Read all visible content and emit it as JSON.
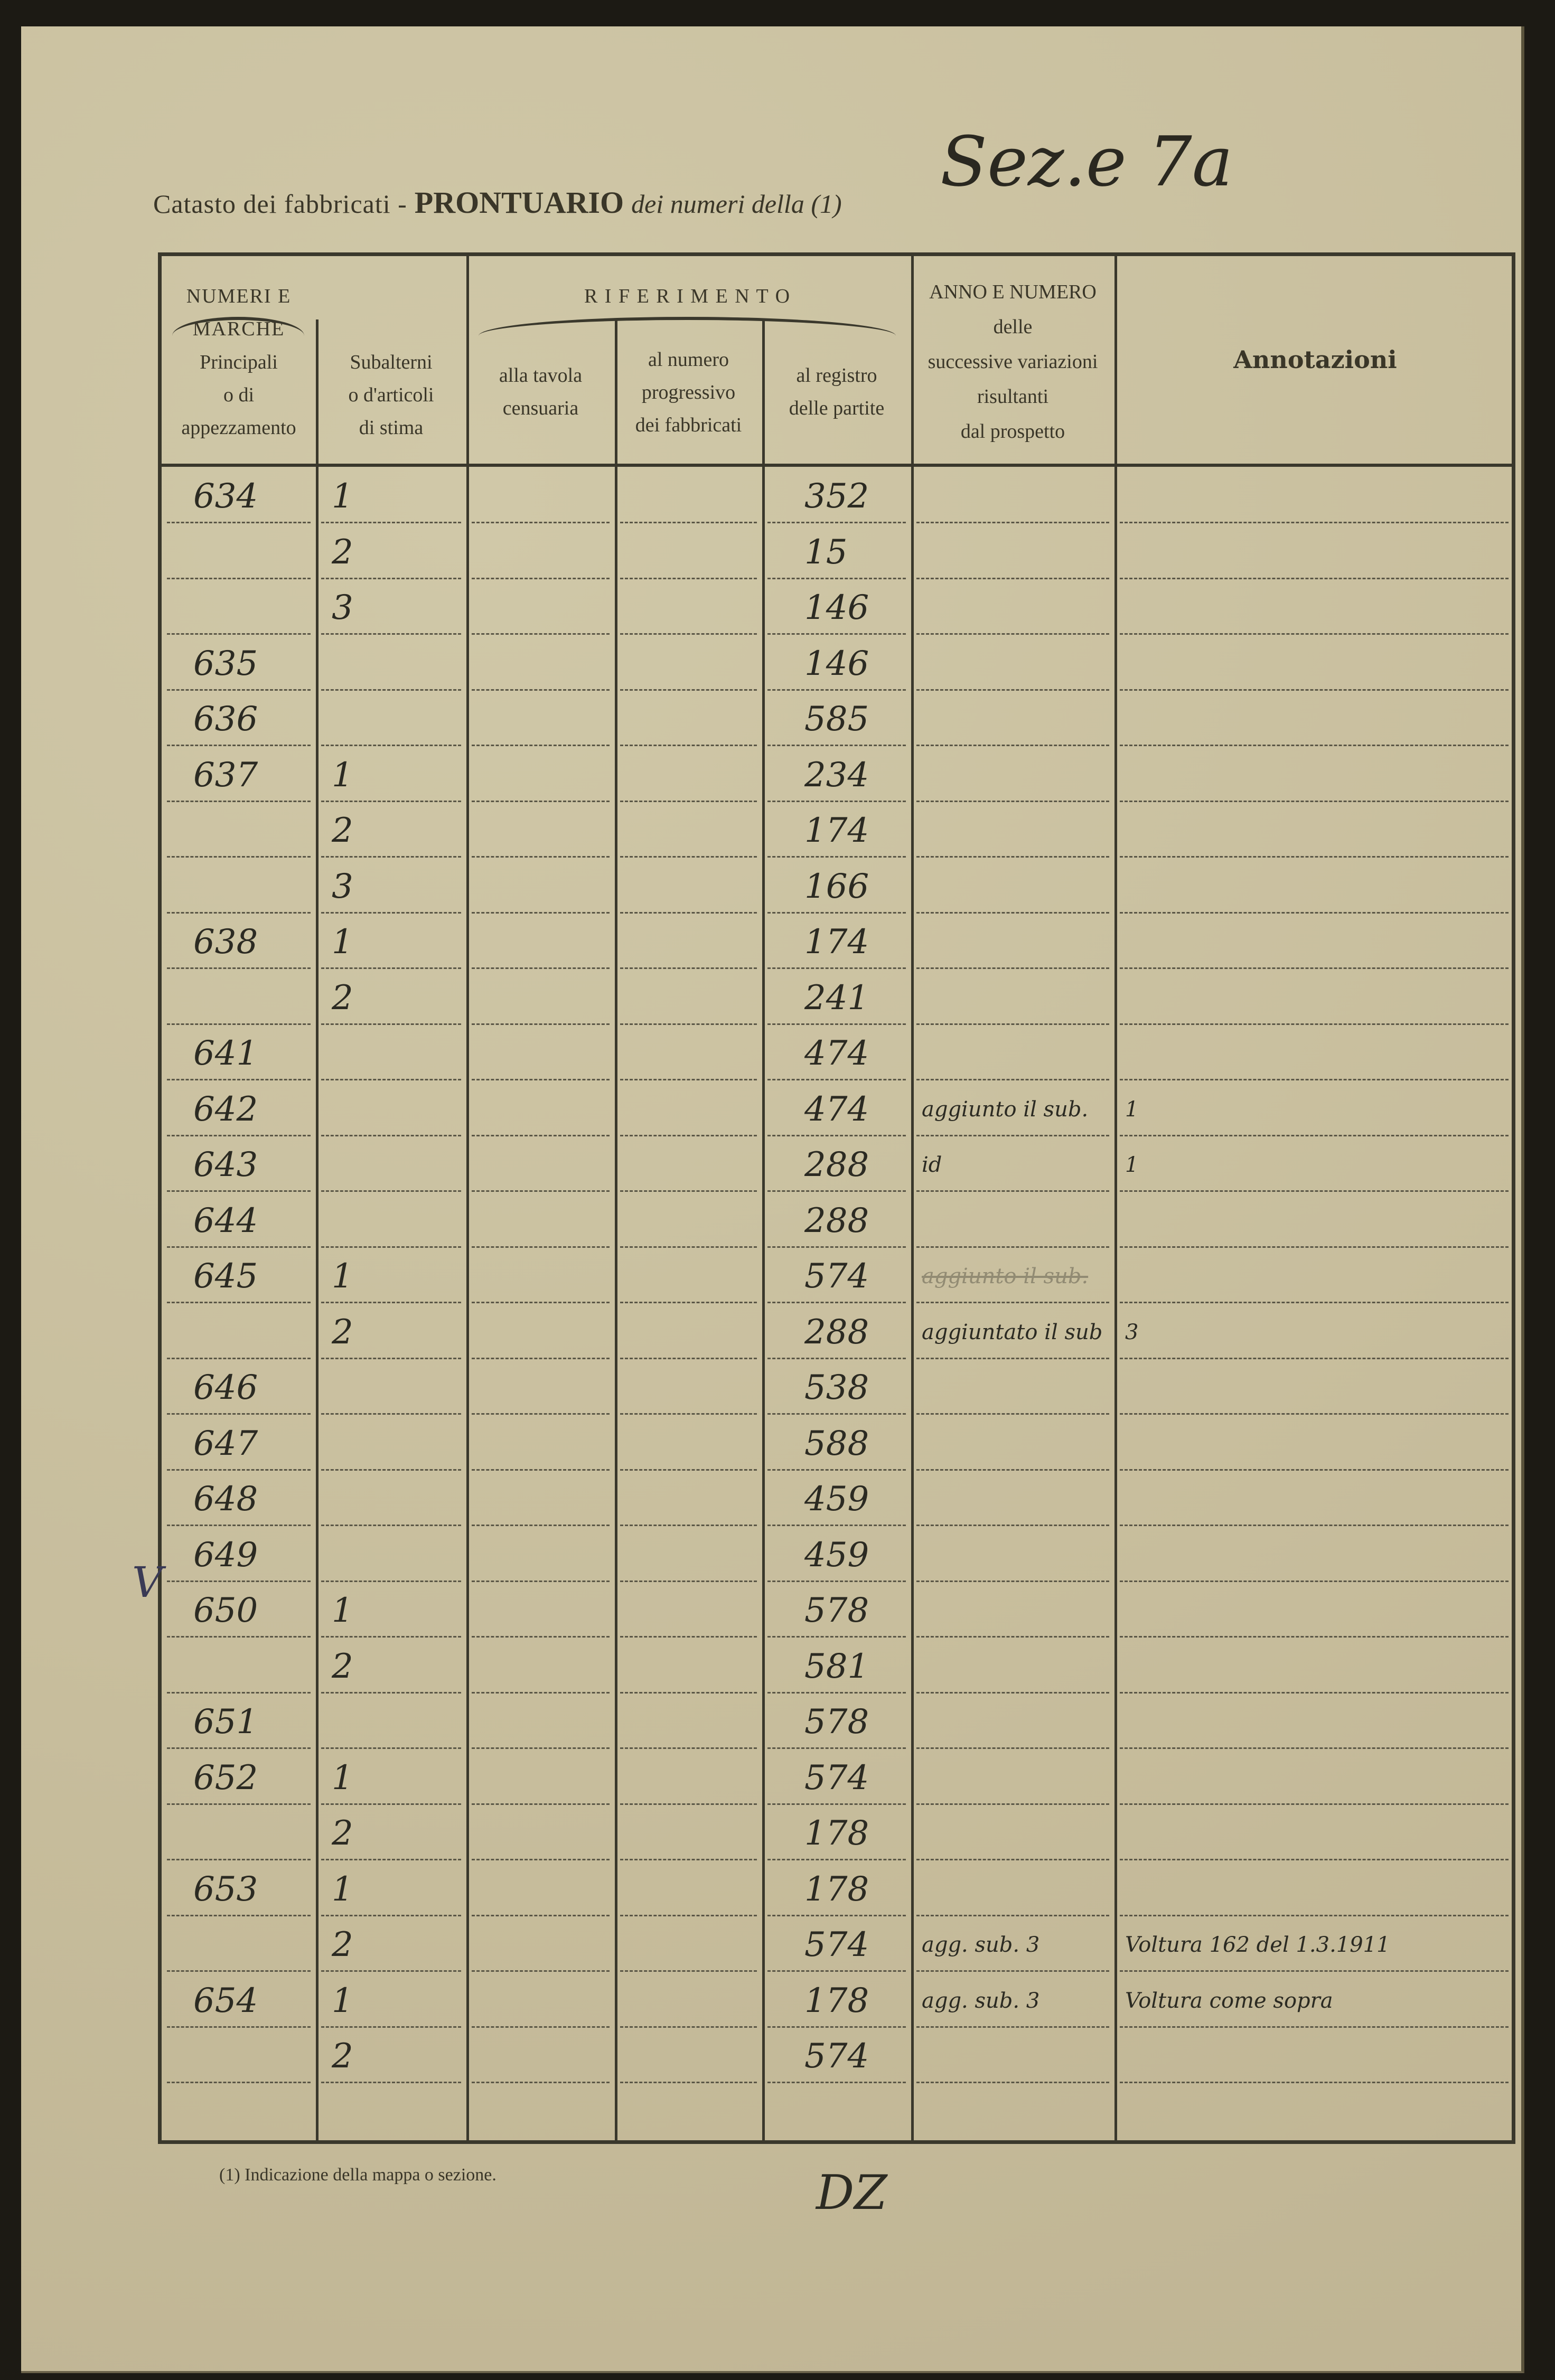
{
  "header": {
    "title_prefix": "Catasto dei fabbricati -",
    "title_main": "PRONTUARIO",
    "title_suffix": "dei numeri della (1)",
    "section_handwritten": "Sez.e 7a"
  },
  "columns": {
    "group_numeri": "NUMERI E MARCHE",
    "principali": [
      "Principali",
      "o di",
      "appezzamento"
    ],
    "subalterni": [
      "Subalterni",
      "o d'articoli",
      "di stima"
    ],
    "group_riferimento": "R I F E R I M E N T O",
    "tavola": [
      "alla tavola",
      "censuaria"
    ],
    "numero": [
      "al numero",
      "progressivo",
      "dei fabbricati"
    ],
    "registro": [
      "al registro",
      "delle partite"
    ],
    "anno": [
      "ANNO E NUMERO",
      "delle",
      "successive variazioni",
      "risultanti",
      "dal prospetto"
    ],
    "annotazioni": "Annotazioni"
  },
  "rows": [
    {
      "principale": "634",
      "sub": "1",
      "partita": "352",
      "variazioni": "",
      "annotazioni": ""
    },
    {
      "principale": "",
      "sub": "2",
      "partita": "15",
      "variazioni": "",
      "annotazioni": ""
    },
    {
      "principale": "",
      "sub": "3",
      "partita": "146",
      "variazioni": "",
      "annotazioni": ""
    },
    {
      "principale": "635",
      "sub": "",
      "partita": "146",
      "variazioni": "",
      "annotazioni": ""
    },
    {
      "principale": "636",
      "sub": "",
      "partita": "585",
      "variazioni": "",
      "annotazioni": ""
    },
    {
      "principale": "637",
      "sub": "1",
      "partita": "234",
      "variazioni": "",
      "annotazioni": ""
    },
    {
      "principale": "",
      "sub": "2",
      "partita": "174",
      "variazioni": "",
      "annotazioni": ""
    },
    {
      "principale": "",
      "sub": "3",
      "partita": "166",
      "variazioni": "",
      "annotazioni": ""
    },
    {
      "principale": "638",
      "sub": "1",
      "partita": "174",
      "variazioni": "",
      "annotazioni": ""
    },
    {
      "principale": "",
      "sub": "2",
      "partita": "241",
      "variazioni": "",
      "annotazioni": ""
    },
    {
      "principale": "641",
      "sub": "",
      "partita": "474",
      "variazioni": "",
      "annotazioni": ""
    },
    {
      "principale": "642",
      "sub": "",
      "partita": "474",
      "variazioni": "aggiunto il sub.",
      "annotazioni": "1"
    },
    {
      "principale": "643",
      "sub": "",
      "partita": "288",
      "variazioni": "id",
      "annotazioni": "1"
    },
    {
      "principale": "644",
      "sub": "",
      "partita": "288",
      "variazioni": "",
      "annotazioni": ""
    },
    {
      "principale": "645",
      "sub": "1",
      "partita": "574",
      "variazioni": "aggiunto il sub.",
      "annotazioni": "",
      "faded": true
    },
    {
      "principale": "",
      "sub": "2",
      "partita": "288",
      "variazioni": "aggiuntato il sub",
      "annotazioni": "3"
    },
    {
      "principale": "646",
      "sub": "",
      "partita": "538",
      "variazioni": "",
      "annotazioni": ""
    },
    {
      "principale": "647",
      "sub": "",
      "partita": "588",
      "variazioni": "",
      "annotazioni": ""
    },
    {
      "principale": "648",
      "sub": "",
      "partita": "459",
      "variazioni": "",
      "annotazioni": ""
    },
    {
      "principale": "649",
      "sub": "",
      "partita": "459",
      "variazioni": "",
      "annotazioni": ""
    },
    {
      "principale": "650",
      "sub": "1",
      "partita": "578",
      "variazioni": "",
      "annotazioni": ""
    },
    {
      "principale": "",
      "sub": "2",
      "partita": "581",
      "variazioni": "",
      "annotazioni": ""
    },
    {
      "principale": "651",
      "sub": "",
      "partita": "578",
      "variazioni": "",
      "annotazioni": ""
    },
    {
      "principale": "652",
      "sub": "1",
      "partita": "574",
      "variazioni": "",
      "annotazioni": ""
    },
    {
      "principale": "",
      "sub": "2",
      "partita": "178",
      "variazioni": "",
      "annotazioni": ""
    },
    {
      "principale": "653",
      "sub": "1",
      "partita": "178",
      "variazioni": "",
      "annotazioni": ""
    },
    {
      "principale": "",
      "sub": "2",
      "partita": "574",
      "variazioni": "agg. sub. 3",
      "annotazioni": "Voltura 162 del 1.3.1911"
    },
    {
      "principale": "654",
      "sub": "1",
      "partita": "178",
      "variazioni": "agg. sub. 3",
      "annotazioni": "Voltura come sopra"
    },
    {
      "principale": "",
      "sub": "2",
      "partita": "574",
      "variazioni": "",
      "annotazioni": ""
    }
  ],
  "footnote": "(1) Indicazione della mappa o sezione.",
  "margin_mark": "V",
  "bottom_mark": "DZ"
}
